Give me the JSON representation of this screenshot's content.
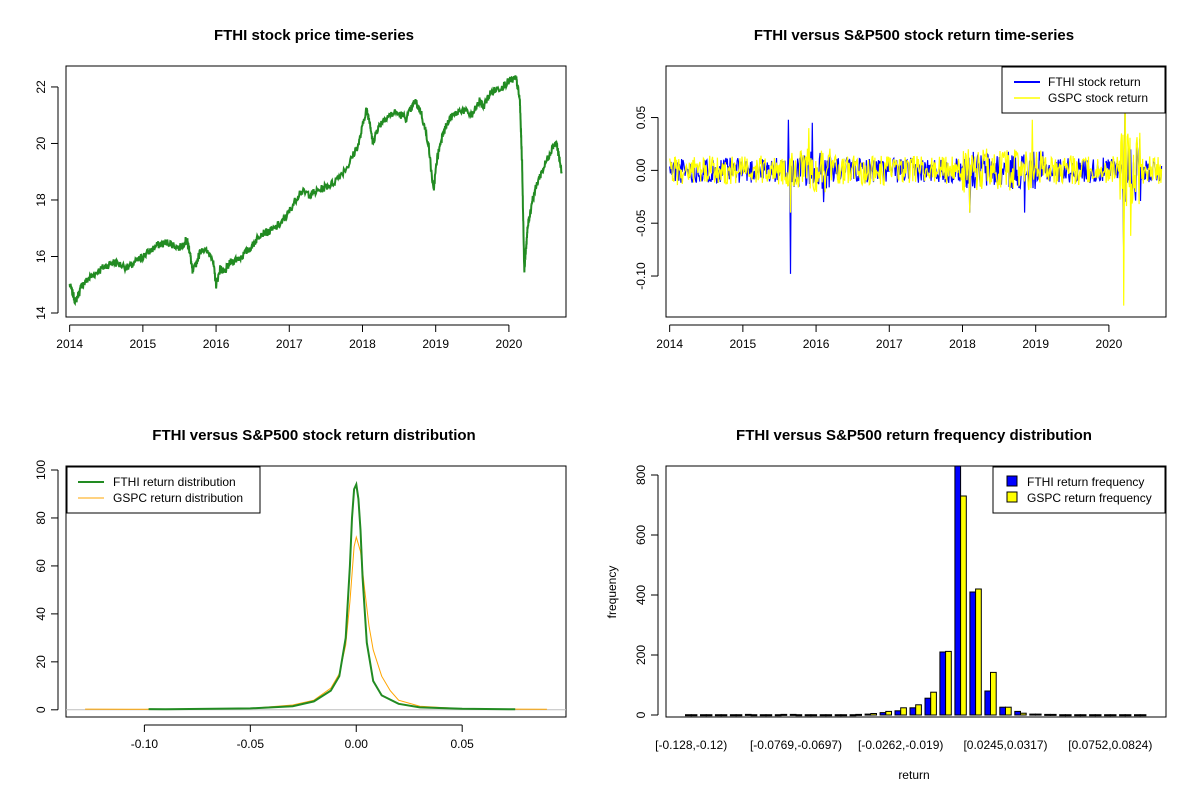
{
  "colors": {
    "fthi_price": "#228B22",
    "fthi_return": "#0000FF",
    "gspc": "#FFFF00",
    "fthi_density": "#228B22",
    "gspc_density": "#FFA500",
    "fthi_hist": "#0000FF",
    "gspc_hist": "#FFFF00"
  },
  "chart_data": [
    {
      "type": "line",
      "title": "FTHI stock price time-series",
      "xlabel": "",
      "ylabel": "",
      "xlim": [
        2013.95,
        2020.78
      ],
      "ylim": [
        14,
        22.6
      ],
      "xticks": [
        "2014",
        "2015",
        "2016",
        "2017",
        "2018",
        "2019",
        "2020"
      ],
      "yticks": [
        "14",
        "16",
        "18",
        "20",
        "22"
      ],
      "x": [
        2014.0,
        2014.08,
        2014.17,
        2014.3,
        2014.45,
        2014.6,
        2014.8,
        2014.95,
        2015.05,
        2015.2,
        2015.35,
        2015.5,
        2015.6,
        2015.64,
        2015.68,
        2015.8,
        2015.95,
        2016.0,
        2016.06,
        2016.1,
        2016.2,
        2016.35,
        2016.5,
        2016.6,
        2016.75,
        2016.9,
        2017.0,
        2017.15,
        2017.3,
        2017.45,
        2017.6,
        2017.8,
        2017.95,
        2018.05,
        2018.1,
        2018.14,
        2018.2,
        2018.3,
        2018.45,
        2018.6,
        2018.72,
        2018.8,
        2018.9,
        2018.97,
        2019.02,
        2019.1,
        2019.2,
        2019.35,
        2019.5,
        2019.6,
        2019.65,
        2019.75,
        2019.9,
        2020.0,
        2020.1,
        2020.15,
        2020.18,
        2020.21,
        2020.23,
        2020.26,
        2020.32,
        2020.4,
        2020.5,
        2020.6,
        2020.65,
        2020.72
      ],
      "series": [
        {
          "values": [
            15.0,
            14.4,
            15.0,
            15.3,
            15.6,
            15.8,
            15.6,
            15.9,
            16.1,
            16.4,
            16.5,
            16.3,
            16.6,
            16.2,
            15.4,
            16.3,
            16.0,
            15.0,
            15.6,
            15.4,
            15.8,
            16.0,
            16.4,
            16.8,
            16.9,
            17.2,
            17.6,
            18.3,
            18.2,
            18.4,
            18.6,
            19.2,
            20.0,
            21.2,
            20.8,
            20.0,
            20.5,
            20.9,
            21.1,
            20.9,
            21.5,
            21.1,
            20.0,
            18.3,
            19.5,
            20.4,
            20.9,
            21.2,
            21.0,
            21.5,
            21.3,
            21.8,
            22.0,
            22.2,
            22.3,
            21.5,
            19.3,
            15.5,
            16.2,
            17.1,
            18.0,
            18.7,
            19.3,
            19.9,
            20.0,
            19.0
          ]
        }
      ]
    },
    {
      "type": "line",
      "title": "FTHI versus S&P500 stock return time-series",
      "xlabel": "",
      "ylabel": "",
      "xlim": [
        2013.95,
        2020.78
      ],
      "ylim": [
        -0.135,
        0.095
      ],
      "xticks": [
        "2014",
        "2015",
        "2016",
        "2017",
        "2018",
        "2019",
        "2020"
      ],
      "yticks": [
        "-0.10",
        "-0.05",
        "0.00",
        "0.05"
      ],
      "legend": {
        "position": "top-right",
        "entries": [
          "FTHI stock return",
          "GSPC stock return"
        ]
      },
      "series": [
        {
          "name": "FTHI stock return",
          "x_range": [
            2014.0,
            2020.72
          ],
          "amplitude": 0.012,
          "spikes": [
            [
              2015.65,
              -0.098
            ],
            [
              2015.62,
              0.048
            ],
            [
              2015.95,
              0.045
            ],
            [
              2016.1,
              -0.03
            ],
            [
              2018.1,
              -0.04
            ],
            [
              2018.85,
              -0.04
            ],
            [
              2020.2,
              -0.08
            ],
            [
              2020.22,
              0.07
            ]
          ]
        },
        {
          "name": "GSPC stock return",
          "x_range": [
            2014.0,
            2020.72
          ],
          "amplitude": 0.014,
          "spikes": [
            [
              2015.65,
              -0.04
            ],
            [
              2015.9,
              0.04
            ],
            [
              2018.1,
              -0.04
            ],
            [
              2018.95,
              0.048
            ],
            [
              2020.2,
              -0.128
            ],
            [
              2020.22,
              0.09
            ],
            [
              2020.3,
              -0.062
            ]
          ]
        }
      ]
    },
    {
      "type": "line",
      "title": "FTHI versus S&P500 stock return distribution",
      "xlabel": "",
      "ylabel": "",
      "xlim": [
        -0.137,
        0.099
      ],
      "ylim": [
        -3,
        100
      ],
      "xticks": [
        "-0.10",
        "-0.05",
        "0.00",
        "0.05"
      ],
      "yticks": [
        "0",
        "20",
        "40",
        "60",
        "80",
        "100"
      ],
      "legend": {
        "position": "top-left",
        "entries": [
          "FTHI return distribution",
          "GSPC return distribution"
        ]
      },
      "series": [
        {
          "name": "FTHI return distribution",
          "x": [
            -0.098,
            -0.09,
            -0.05,
            -0.03,
            -0.02,
            -0.012,
            -0.008,
            -0.005,
            -0.003,
            -0.002,
            -0.001,
            0.0,
            0.001,
            0.002,
            0.003,
            0.005,
            0.008,
            0.012,
            0.02,
            0.03,
            0.05,
            0.075
          ],
          "values": [
            0.3,
            0.2,
            0.6,
            1.5,
            3.5,
            8,
            14,
            30,
            60,
            80,
            92,
            94,
            88,
            75,
            55,
            28,
            12,
            6,
            2.5,
            1,
            0.4,
            0.2
          ]
        },
        {
          "name": "GSPC return distribution",
          "x": [
            -0.128,
            -0.1,
            -0.05,
            -0.03,
            -0.02,
            -0.012,
            -0.008,
            -0.005,
            -0.003,
            -0.001,
            0.0,
            0.002,
            0.004,
            0.006,
            0.008,
            0.012,
            0.016,
            0.02,
            0.03,
            0.05,
            0.09
          ],
          "values": [
            0.3,
            0.2,
            0.6,
            2,
            4,
            9,
            15,
            27,
            45,
            68,
            72,
            66,
            50,
            35,
            25,
            14,
            8,
            4,
            1.5,
            0.4,
            0.2
          ]
        }
      ]
    },
    {
      "type": "bar",
      "title": "FTHI versus S&P500 return frequency distribution",
      "xlabel": "return",
      "ylabel": "frequency",
      "ylim": [
        0,
        830
      ],
      "yticks": [
        "0",
        "200",
        "400",
        "600",
        "800"
      ],
      "xtick_labels": [
        "[-0.128,-0.12)",
        "[-0.0769,-0.0697)",
        "[-0.0262,-0.019)",
        "[0.0245,0.0317)",
        "[0.0752,0.0824)"
      ],
      "xtick_bins": [
        0,
        7,
        14,
        21,
        28
      ],
      "legend": {
        "position": "top-right",
        "entries": [
          "FTHI return frequency",
          "GSPC return frequency"
        ]
      },
      "series": [
        {
          "name": "FTHI return frequency",
          "values": [
            1,
            1,
            1,
            1,
            2,
            1,
            1,
            2,
            1,
            1,
            1,
            1,
            3,
            8,
            14,
            24,
            56,
            210,
            830,
            410,
            80,
            26,
            12,
            3,
            2,
            1,
            1,
            1,
            1,
            1,
            1
          ]
        },
        {
          "name": "GSPC return frequency",
          "values": [
            1,
            1,
            1,
            1,
            1,
            1,
            2,
            1,
            1,
            1,
            1,
            2,
            5,
            12,
            24,
            34,
            76,
            212,
            730,
            420,
            142,
            26,
            6,
            3,
            2,
            1,
            1,
            1,
            1,
            1,
            1
          ]
        }
      ]
    }
  ]
}
